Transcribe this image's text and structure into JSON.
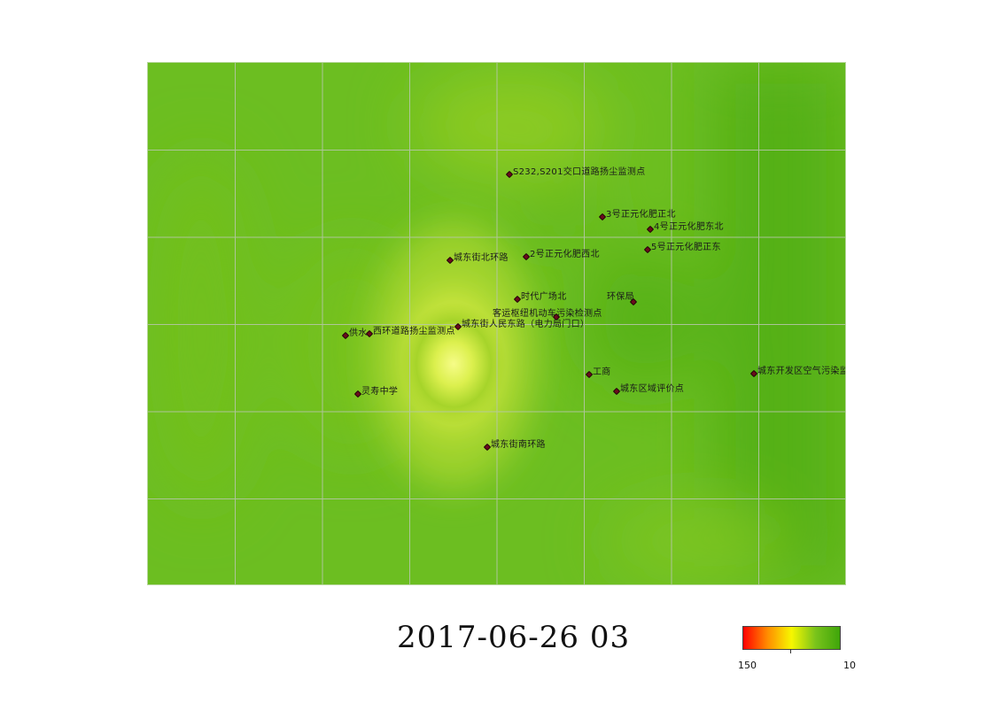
{
  "map": {
    "timestamp": "2017-06-26 03",
    "grid": true,
    "colors": {
      "base_green": "#6bbd22",
      "dark_green": "#55b013",
      "yellow_green": "#c2e13a",
      "hotspot_yellow": "#f4fb7f",
      "grid_line": "#b9c7ae",
      "marker": "#6b0c1c"
    },
    "stations": [
      {
        "name": "S232,S201交口道路扬尘监测点"
      },
      {
        "name": "3号正元化肥正北"
      },
      {
        "name": "4号正元化肥东北"
      },
      {
        "name": "5号正元化肥正东"
      },
      {
        "name": "2号正元化肥西北"
      },
      {
        "name": "城东街北环路"
      },
      {
        "name": "时代广场北"
      },
      {
        "name": "环保局"
      },
      {
        "name": "客运枢纽机动车污染检测点"
      },
      {
        "name": "城东街人民东路（电力局门口）"
      },
      {
        "name": "供水"
      },
      {
        "name": "西环道路扬尘监测点"
      },
      {
        "name": "工商"
      },
      {
        "name": "城东开发区空气污染监测点"
      },
      {
        "name": "城东区域评价点"
      },
      {
        "name": "灵寿中学"
      },
      {
        "name": "城东街南环路"
      }
    ]
  },
  "legend": {
    "max_label": "150",
    "min_label": "10",
    "gradient_colors": [
      "#ff0000",
      "#ff8c00",
      "#f7f700",
      "#79c31b",
      "#3fa50a"
    ]
  }
}
